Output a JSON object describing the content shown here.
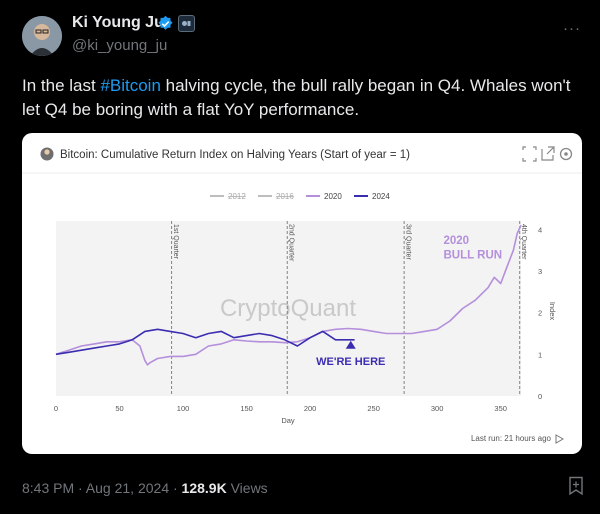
{
  "tweet": {
    "author_name": "Ki Young Ju",
    "handle": "@ki_young_ju",
    "text_before": "In the last ",
    "hashtag": "#Bitcoin",
    "text_after": " halving cycle, the bull rally began in Q4. Whales won't let Q4 be boring with a flat YoY performance.",
    "more_icon": "more-dots-icon",
    "time": "8:43 PM · Aug 21, 2024 · ",
    "views_count": "128.9K",
    "views_label": " Views"
  },
  "card": {
    "header_icon": "avatar-icon",
    "chart_title": "Bitcoin: Cumulative Return Index on Halving Years (Start of year = 1)",
    "toolbar_icons": [
      "expand-icon",
      "share-icon",
      "settings-icon"
    ],
    "watermark": "CryptoQuant",
    "last_run": "Last run: 21 hours ago",
    "colors": {
      "s2012": "#bdbdbd",
      "s2016": "#bdbdbd",
      "s2020": "#b48fdc",
      "s2024": "#3b2db0",
      "annotation": "#b48fdc",
      "here": "#3b2db0"
    }
  },
  "chart_data": {
    "type": "line",
    "title": "Bitcoin: Cumulative Return Index on Halving Years (Start of year = 1)",
    "xlabel": "Day",
    "ylabel": "Index",
    "xlim": [
      0,
      366
    ],
    "ylim": [
      0,
      4.2
    ],
    "x_ticks": [
      0,
      50,
      100,
      150,
      200,
      250,
      300,
      350
    ],
    "y_ticks": [
      0,
      1,
      2,
      3,
      4
    ],
    "y_axis_side": "right",
    "legend_position": "top",
    "grid": false,
    "quarter_lines": [
      {
        "day": 91,
        "label": "1st Quarter"
      },
      {
        "day": 182,
        "label": "2nd Quarter"
      },
      {
        "day": 274,
        "label": "3rd Quarter"
      },
      {
        "day": 365,
        "label": "4th Quarter"
      }
    ],
    "annotations": [
      {
        "text": "2020",
        "x": 305,
        "y": 3.65
      },
      {
        "text": "BULL RUN",
        "x": 305,
        "y": 3.3
      },
      {
        "text": "WE'RE HERE",
        "x": 232,
        "y": 0.75
      }
    ],
    "series": [
      {
        "name": "2012",
        "visible": false,
        "x": [],
        "y": []
      },
      {
        "name": "2016",
        "visible": false,
        "x": [],
        "y": []
      },
      {
        "name": "2020",
        "visible": true,
        "x": [
          0,
          10,
          20,
          30,
          40,
          50,
          60,
          66,
          70,
          72,
          74,
          80,
          90,
          100,
          110,
          120,
          130,
          140,
          150,
          160,
          170,
          180,
          190,
          200,
          210,
          220,
          230,
          240,
          250,
          260,
          270,
          280,
          290,
          300,
          310,
          320,
          330,
          340,
          345,
          350,
          355,
          360,
          363,
          366
        ],
        "y": [
          1.0,
          1.1,
          1.2,
          1.25,
          1.3,
          1.3,
          1.35,
          1.2,
          0.85,
          0.75,
          0.8,
          0.9,
          0.95,
          0.95,
          1.0,
          1.2,
          1.25,
          1.35,
          1.32,
          1.3,
          1.3,
          1.28,
          1.3,
          1.4,
          1.55,
          1.6,
          1.62,
          1.6,
          1.55,
          1.5,
          1.5,
          1.5,
          1.55,
          1.6,
          1.8,
          2.1,
          2.3,
          2.6,
          2.85,
          2.7,
          3.1,
          3.5,
          3.9,
          4.1
        ]
      },
      {
        "name": "2024",
        "visible": true,
        "x": [
          0,
          10,
          20,
          30,
          40,
          50,
          60,
          70,
          80,
          90,
          100,
          110,
          120,
          130,
          140,
          150,
          160,
          170,
          180,
          190,
          200,
          210,
          220,
          230,
          235
        ],
        "y": [
          1.0,
          1.05,
          1.1,
          1.15,
          1.2,
          1.25,
          1.35,
          1.55,
          1.6,
          1.55,
          1.5,
          1.4,
          1.5,
          1.55,
          1.4,
          1.45,
          1.5,
          1.45,
          1.35,
          1.2,
          1.4,
          1.55,
          1.35,
          1.35,
          1.35
        ]
      }
    ]
  }
}
